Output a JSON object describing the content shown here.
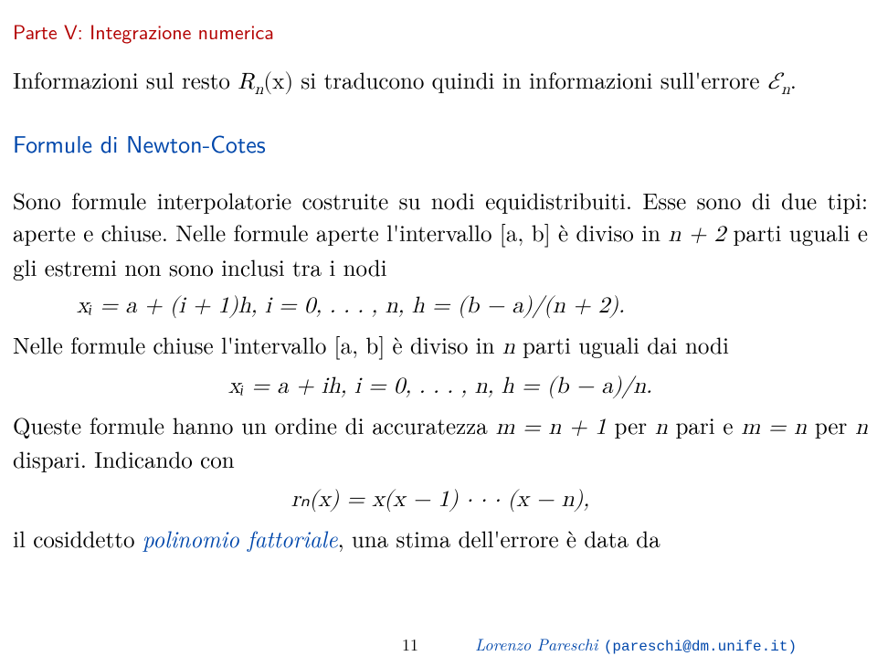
{
  "partTitle": "Parte V: Integrazione numerica",
  "intro_a": "Informazioni sul resto ",
  "intro_math1": "R",
  "intro_math1_sub": "n",
  "intro_math1_arg": "(x)",
  "intro_b": " si traducono quindi in informazioni sull'errore ",
  "intro_math2": "ℰ",
  "intro_math2_sub": "n",
  "intro_c": ".",
  "sectionTitle": "Formule di Newton-Cotes",
  "para2_a": "Sono formule interpolatorie costruite su nodi equidistribuiti. Esse sono di due tipi: aperte e chiuse. Nelle formule aperte l'intervallo ",
  "interval": "[a, b]",
  "para2_b": " è diviso in ",
  "nplus2": "n + 2",
  "para2_c": " parti uguali e gli estremi non sono inclusi tra i nodi",
  "eq1": "xᵢ = a + (i + 1)h,    i = 0, . . . , n,    h = (b − a)/(n + 2).",
  "para3_a": "Nelle formule chiuse l'intervallo ",
  "para3_b": " è diviso in ",
  "n_sym": "n",
  "para3_c": " parti uguali dai nodi",
  "eq2": "xᵢ = a + ih,    i = 0, . . . , n,    h = (b − a)/n.",
  "para4_a": "Queste formule hanno un ordine di accuratezza ",
  "m_eq_np1": "m = n + 1",
  "para4_b": " per ",
  "para4_c": " pari e ",
  "m_eq_n": "m = n",
  "para4_d": " dispari. Indicando con",
  "eq3": "rₙ(x) = x(x − 1) · · · (x − n),",
  "para5_a": "il cosiddetto ",
  "polin": "polinomio fattoriale",
  "para5_b": ", una stima dell'errore è data da",
  "pageNumber": "11",
  "authorName": "Lorenzo Pareschi ",
  "authorEmail": "(pareschi@dm.unife.it)"
}
